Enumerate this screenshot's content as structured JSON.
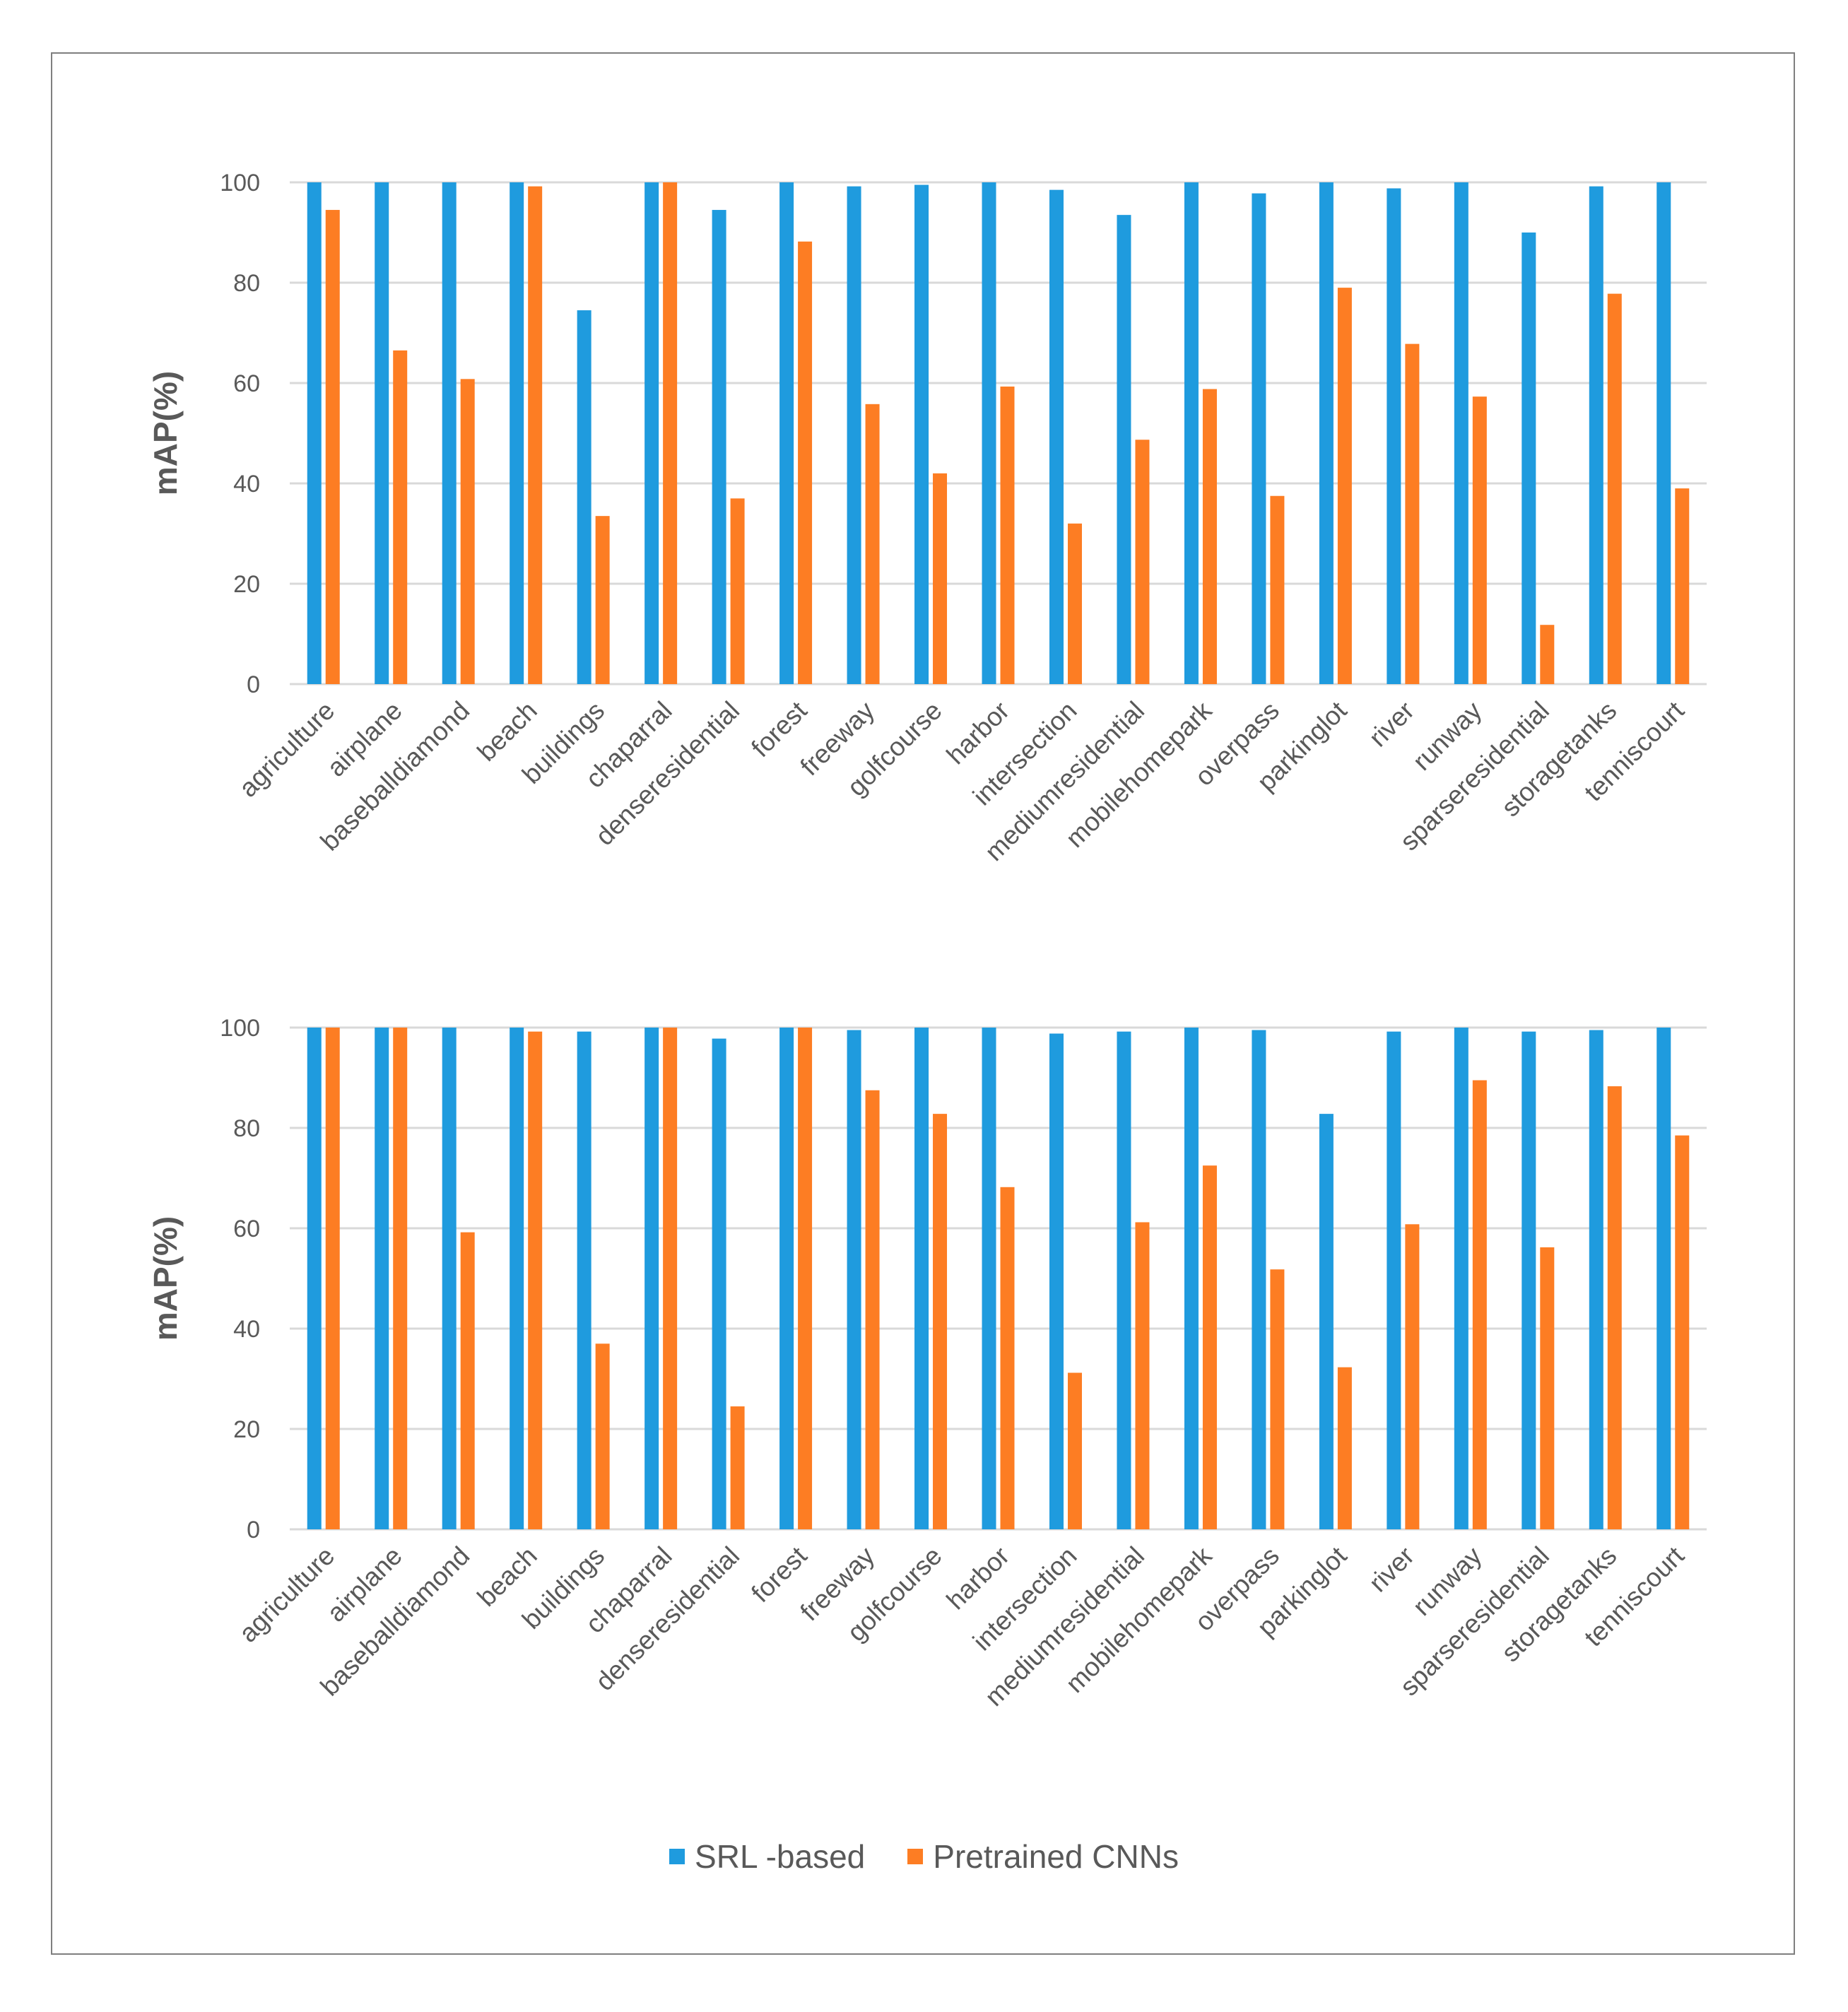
{
  "chart_data": [
    {
      "type": "bar",
      "ylabel": "mAP(%)",
      "ylim": [
        0,
        100
      ],
      "yticks": [
        0,
        20,
        40,
        60,
        80,
        100
      ],
      "grid": true,
      "categories": [
        "agriculture",
        "airplane",
        "baseballdiamond",
        "beach",
        "buildings",
        "chaparral",
        "denseresidential",
        "forest",
        "freeway",
        "golfcourse",
        "harbor",
        "intersection",
        "mediumresidential",
        "mobilehomepark",
        "overpass",
        "parkinglot",
        "river",
        "runway",
        "sparseresidential",
        "storagetanks",
        "tenniscourt"
      ],
      "series": [
        {
          "name": "SRL -based",
          "values": [
            100,
            100,
            100,
            100,
            74.5,
            100,
            94.5,
            100,
            99.2,
            99.5,
            100,
            98.5,
            93.5,
            100,
            97.8,
            100,
            98.8,
            100,
            90,
            99.2,
            100
          ]
        },
        {
          "name": "Pretrained CNNs",
          "values": [
            94.5,
            66.5,
            60.8,
            99.2,
            33.5,
            100,
            37,
            88.2,
            55.8,
            42,
            59.3,
            32,
            48.7,
            58.8,
            37.5,
            79,
            67.8,
            57.3,
            11.8,
            77.8,
            39
          ]
        }
      ]
    },
    {
      "type": "bar",
      "ylabel": "mAP(%)",
      "ylim": [
        0,
        100
      ],
      "yticks": [
        0,
        20,
        40,
        60,
        80,
        100
      ],
      "grid": true,
      "categories": [
        "agriculture",
        "airplane",
        "baseballdiamond",
        "beach",
        "buildings",
        "chaparral",
        "denseresidential",
        "forest",
        "freeway",
        "golfcourse",
        "harbor",
        "intersection",
        "mediumresidential",
        "mobilehomepark",
        "overpass",
        "parkinglot",
        "river",
        "runway",
        "sparseresidential",
        "storagetanks",
        "tenniscourt"
      ],
      "series": [
        {
          "name": "SRL -based",
          "values": [
            100,
            100,
            100,
            100,
            99.2,
            100,
            97.8,
            100,
            99.5,
            100,
            100,
            98.8,
            99.2,
            100,
            99.5,
            82.8,
            99.2,
            100,
            99.2,
            99.5,
            100
          ]
        },
        {
          "name": "Pretrained CNNs",
          "values": [
            100,
            100,
            59.2,
            99.2,
            37,
            100,
            24.5,
            100,
            87.5,
            82.8,
            68.2,
            31.2,
            61.2,
            72.5,
            51.8,
            32.3,
            60.8,
            89.5,
            56.2,
            88.3,
            78.5
          ]
        }
      ]
    }
  ],
  "legend": [
    {
      "label": "SRL -based",
      "color": "#1f9bde"
    },
    {
      "label": "Pretrained CNNs",
      "color": "#fd7d23"
    }
  ],
  "colors": {
    "grid": "#d9d9d9",
    "text": "#595959"
  }
}
